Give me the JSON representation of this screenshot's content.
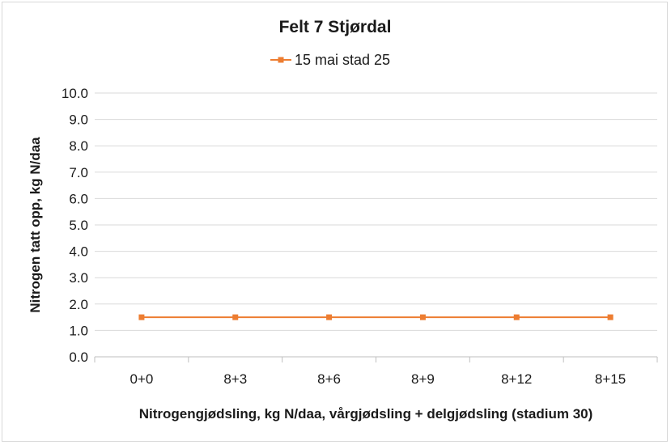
{
  "chart_data": {
    "type": "line",
    "title": "Felt 7 Stjørdal",
    "xlabel": "Nitrogengjødsling, kg N/daa, vårgjødsling + delgjødsling (stadium 30)",
    "ylabel": "Nitrogen tatt opp, kg N/daa",
    "categories": [
      "0+0",
      "8+3",
      "8+6",
      "8+9",
      "8+12",
      "8+15"
    ],
    "ylim": [
      0,
      10
    ],
    "yticks": [
      "0.0",
      "1.0",
      "2.0",
      "3.0",
      "4.0",
      "5.0",
      "6.0",
      "7.0",
      "8.0",
      "9.0",
      "10.0"
    ],
    "grid": true,
    "legend_position": "top",
    "series": [
      {
        "name": "15 mai stad 25",
        "values": [
          1.5,
          1.5,
          1.5,
          1.5,
          1.5,
          1.5
        ],
        "color": "#ed7d31",
        "marker": "square"
      }
    ]
  }
}
